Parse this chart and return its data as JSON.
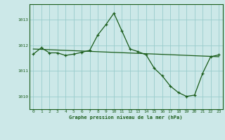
{
  "title": "Graphe pression niveau de la mer (hPa)",
  "bg_color": "#cce8e8",
  "grid_color": "#99cccc",
  "line_color": "#1a5c1a",
  "xlim": [
    -0.5,
    23.5
  ],
  "ylim": [
    1009.5,
    1013.6
  ],
  "yticks": [
    1010,
    1011,
    1012,
    1013
  ],
  "xticks": [
    0,
    1,
    2,
    3,
    4,
    5,
    6,
    7,
    8,
    9,
    10,
    11,
    12,
    13,
    14,
    15,
    16,
    17,
    18,
    19,
    20,
    21,
    22,
    23
  ],
  "trend_x": [
    0,
    23
  ],
  "trend_y": [
    1011.85,
    1011.55
  ],
  "data_x": [
    0,
    1,
    2,
    3,
    4,
    5,
    6,
    7,
    8,
    9,
    10,
    11,
    12,
    13,
    14,
    15,
    16,
    17,
    18,
    19,
    20,
    21,
    22,
    23
  ],
  "data_y": [
    1011.65,
    1011.9,
    1011.7,
    1011.7,
    1011.6,
    1011.65,
    1011.72,
    1011.8,
    1012.4,
    1012.8,
    1013.25,
    1012.55,
    1011.85,
    1011.75,
    1011.62,
    1011.1,
    1010.8,
    1010.4,
    1010.15,
    1010.0,
    1010.05,
    1010.9,
    1011.55,
    1011.62
  ]
}
